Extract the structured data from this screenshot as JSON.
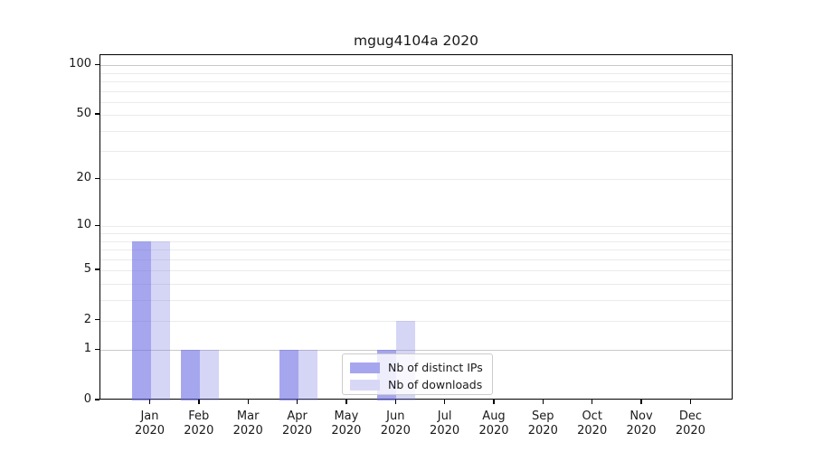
{
  "figure": {
    "background": "#ffffff"
  },
  "chart_data": {
    "type": "bar",
    "title": "mgug4104a 2020",
    "categories": [
      "Jan",
      "Feb",
      "Mar",
      "Apr",
      "May",
      "Jun",
      "Jul",
      "Aug",
      "Sep",
      "Oct",
      "Nov",
      "Dec"
    ],
    "category_year": "2020",
    "series": [
      {
        "name": "Nb of distinct IPs",
        "color": "rgba(106,106,226,0.60)",
        "swatch_color": "#a6a6ee",
        "values": [
          8,
          1,
          0,
          1,
          0,
          1,
          0,
          0,
          0,
          0,
          0,
          0
        ]
      },
      {
        "name": "Nb of downloads",
        "color": "rgba(125,125,228,0.32)",
        "swatch_color": "#d8d8f6",
        "values": [
          8,
          1,
          0,
          1,
          0,
          2,
          0,
          0,
          0,
          0,
          0,
          0
        ]
      }
    ],
    "yscale": "log1p",
    "ylim": [
      0,
      113
    ],
    "yticks": [
      0,
      1,
      2,
      5,
      10,
      20,
      50,
      100
    ],
    "grid_values": [
      1,
      2,
      3,
      4,
      5,
      6,
      7,
      8,
      9,
      10,
      20,
      30,
      40,
      50,
      60,
      70,
      80,
      90,
      100
    ],
    "grid_major_values": [
      1,
      100
    ],
    "grid": true,
    "legend_position": "lower center",
    "legend_entries": [
      "Nb of distinct IPs",
      "Nb of downloads"
    ]
  }
}
